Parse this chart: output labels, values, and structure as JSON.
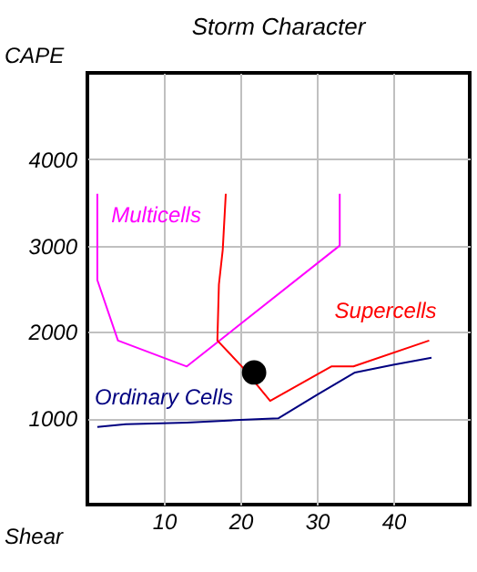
{
  "chart_data": {
    "type": "line",
    "title": "Storm Character",
    "xlabel": "Shear",
    "ylabel": "CAPE",
    "xlim": [
      0,
      50
    ],
    "ylim": [
      0,
      5000
    ],
    "xticks": [
      10,
      20,
      30,
      40
    ],
    "yticks": [
      1000,
      2000,
      3000,
      4000
    ],
    "grid": true,
    "series": [
      {
        "name": "Multicells",
        "color": "#ff00ff",
        "x": [
          1.3,
          1.3,
          4,
          13,
          33,
          33
        ],
        "values": [
          3600,
          2600,
          1900,
          1600,
          3000,
          3600
        ]
      },
      {
        "name": "Supercells",
        "color": "#ff0000",
        "x": [
          18.1,
          17.7,
          17.2,
          17,
          20.2,
          23.9,
          31.9,
          34.8,
          44.7
        ],
        "values": [
          3600,
          2950,
          2550,
          1900,
          1600,
          1200,
          1600,
          1600,
          1900
        ]
      },
      {
        "name": "Ordinary Cells",
        "color": "#000080",
        "x": [
          1.3,
          5,
          13,
          20,
          25,
          30,
          35,
          40,
          45
        ],
        "values": [
          900,
          930,
          950,
          980,
          1000,
          1270,
          1530,
          1620,
          1700
        ]
      },
      {
        "type": "scatter",
        "color": "#000000",
        "x": [
          21.8
        ],
        "values": [
          1530
        ]
      }
    ]
  }
}
